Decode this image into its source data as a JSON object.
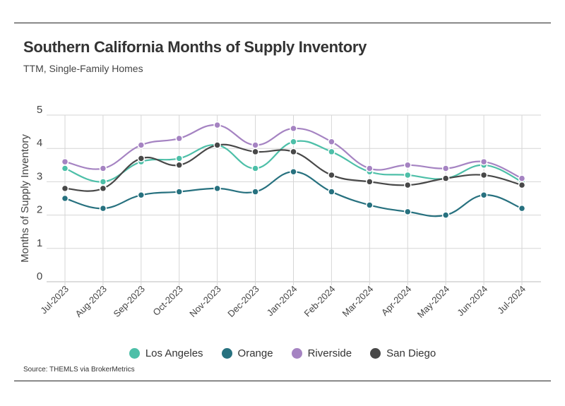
{
  "title": "Southern California Months of Supply Inventory",
  "subtitle": "TTM, Single-Family Homes",
  "source": "Source:  THEMLS via BrokerMetrics",
  "chart_data": {
    "type": "line",
    "title": "Southern California Months of Supply Inventory",
    "subtitle": "TTM, Single-Family Homes",
    "xlabel": "",
    "ylabel": "Months of Supply Inventory",
    "ylim": [
      0,
      5
    ],
    "yticks": [
      "0",
      "1",
      "2",
      "3",
      "4",
      "5"
    ],
    "grid": true,
    "legend_position": "bottom",
    "categories": [
      "Jul-2023",
      "Aug-2023",
      "Sep-2023",
      "Oct-2023",
      "Nov-2023",
      "Dec-2023",
      "Jan-2024",
      "Feb-2024",
      "Mar-2024",
      "Apr-2024",
      "May-2024",
      "Jun-2024",
      "Jul-2024"
    ],
    "series": [
      {
        "name": "Los Angeles",
        "color": "#4dbfa8",
        "values": [
          3.4,
          3.0,
          3.6,
          3.7,
          4.1,
          3.4,
          4.2,
          3.9,
          3.3,
          3.2,
          3.1,
          3.5,
          3.0
        ]
      },
      {
        "name": "Orange",
        "color": "#27717f",
        "values": [
          2.5,
          2.2,
          2.6,
          2.7,
          2.8,
          2.7,
          3.3,
          2.7,
          2.3,
          2.1,
          2.0,
          2.6,
          2.2
        ]
      },
      {
        "name": "Riverside",
        "color": "#a583c2",
        "values": [
          3.6,
          3.4,
          4.1,
          4.3,
          4.7,
          4.1,
          4.6,
          4.2,
          3.4,
          3.5,
          3.4,
          3.6,
          3.1
        ]
      },
      {
        "name": "San Diego",
        "color": "#484848",
        "values": [
          2.8,
          2.8,
          3.7,
          3.5,
          4.1,
          3.9,
          3.9,
          3.2,
          3.0,
          2.9,
          3.1,
          3.2,
          2.9
        ]
      }
    ]
  }
}
